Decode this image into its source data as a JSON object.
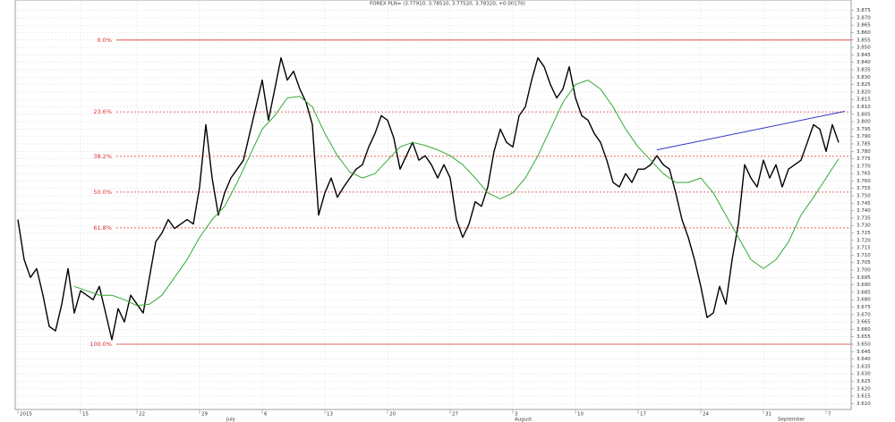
{
  "chart_data": {
    "type": "line",
    "title": "FOREX PLN= (3.77910, 3.78510, 3.77520, 3.78320, +0.00170)",
    "xlim": [
      0,
      133
    ],
    "ylim": [
      3.606,
      3.882
    ],
    "grid": true,
    "xticks": [
      {
        "value": 0,
        "label": "2015"
      },
      {
        "value": 10,
        "label": "15"
      },
      {
        "value": 19,
        "label": "22"
      },
      {
        "value": 29,
        "label": "29"
      },
      {
        "value": 39,
        "label": "6"
      },
      {
        "value": 49,
        "label": "13"
      },
      {
        "value": 59,
        "label": "20"
      },
      {
        "value": 69,
        "label": "27"
      },
      {
        "value": 79,
        "label": "3"
      },
      {
        "value": 89,
        "label": "10"
      },
      {
        "value": 99,
        "label": "17"
      },
      {
        "value": 109,
        "label": "24"
      },
      {
        "value": 119,
        "label": "31"
      },
      {
        "value": 129,
        "label": "7"
      }
    ],
    "month_labels": [
      {
        "value": 33,
        "label": "July"
      },
      {
        "value": 79,
        "label": "August"
      },
      {
        "value": 121,
        "label": "September"
      }
    ],
    "yticks": [
      {
        "value": 3.61,
        "label": "3.610"
      },
      3.615,
      {
        "value": 3.62,
        "label": "3.620"
      },
      3.625,
      {
        "value": 3.63,
        "label": "3.630"
      },
      3.635,
      {
        "value": 3.64,
        "label": "3.640"
      },
      3.645,
      {
        "value": 3.65,
        "label": "3.650"
      },
      3.655,
      {
        "value": 3.66,
        "label": "3.660"
      },
      3.665,
      {
        "value": 3.67,
        "label": "3.670"
      },
      3.675,
      {
        "value": 3.68,
        "label": "3.680"
      },
      3.685,
      {
        "value": 3.69,
        "label": "3.690"
      },
      3.695,
      {
        "value": 3.7,
        "label": "3.700"
      },
      3.705,
      {
        "value": 3.71,
        "label": "3.710"
      },
      3.715,
      {
        "value": 3.72,
        "label": "3.720"
      },
      3.725,
      {
        "value": 3.73,
        "label": "3.730"
      },
      3.735,
      {
        "value": 3.74,
        "label": "3.740"
      },
      3.745,
      {
        "value": 3.75,
        "label": "3.750"
      },
      3.755,
      {
        "value": 3.76,
        "label": "3.760"
      },
      3.765,
      {
        "value": 3.77,
        "label": "3.770"
      },
      3.775,
      {
        "value": 3.78,
        "label": "3.780"
      },
      3.785,
      {
        "value": 3.79,
        "label": "3.790"
      },
      3.795,
      {
        "value": 3.8,
        "label": "3.800"
      },
      3.805,
      {
        "value": 3.81,
        "label": "3.810"
      },
      3.815,
      {
        "value": 3.82,
        "label": "3.820"
      },
      3.825,
      {
        "value": 3.83,
        "label": "3.830"
      },
      3.835,
      {
        "value": 3.84,
        "label": "3.840"
      },
      3.845,
      {
        "value": 3.85,
        "label": "3.850"
      },
      3.855,
      {
        "value": 3.86,
        "label": "3.860"
      },
      3.865,
      {
        "value": 3.87,
        "label": "3.870"
      },
      3.875
    ],
    "series": [
      {
        "color": "#000000",
        "values": [
          3.734,
          3.707,
          3.695,
          3.701,
          3.683,
          3.662,
          3.659,
          3.677,
          3.701,
          3.671,
          3.686,
          3.683,
          3.68,
          3.689,
          3.671,
          3.653,
          3.674,
          3.665,
          3.683,
          3.677,
          3.671,
          3.695,
          3.719,
          3.725,
          3.734,
          3.728,
          3.731,
          3.734,
          3.731,
          3.756,
          3.798,
          3.762,
          3.737,
          3.752,
          3.762,
          3.768,
          3.774,
          3.792,
          3.81,
          3.828,
          3.801,
          3.822,
          3.843,
          3.828,
          3.834,
          3.822,
          3.813,
          3.798,
          3.737,
          3.752,
          3.762,
          3.749,
          3.756,
          3.762,
          3.768,
          3.771,
          3.783,
          3.792,
          3.804,
          3.801,
          3.789,
          3.768,
          3.777,
          3.786,
          3.774,
          3.777,
          3.771,
          3.762,
          3.771,
          3.762,
          3.734,
          3.722,
          3.731,
          3.746,
          3.743,
          3.756,
          3.78,
          3.795,
          3.786,
          3.783,
          3.804,
          3.81,
          3.828,
          3.843,
          3.837,
          3.825,
          3.816,
          3.822,
          3.837,
          3.816,
          3.804,
          3.801,
          3.792,
          3.786,
          3.774,
          3.759,
          3.756,
          3.765,
          3.759,
          3.768,
          3.768,
          3.771,
          3.777,
          3.771,
          3.768,
          3.752,
          3.734,
          3.722,
          3.707,
          3.689,
          3.668,
          3.671,
          3.689,
          3.677,
          3.707,
          3.731,
          3.771,
          3.762,
          3.756,
          3.774,
          3.762,
          3.771,
          3.756,
          3.768,
          3.771,
          3.774,
          3.786,
          3.798,
          3.795,
          3.78,
          3.798,
          3.786
        ]
      },
      {
        "color": "#33aa33",
        "x": [
          9,
          11,
          13,
          15,
          17,
          19,
          21,
          23,
          25,
          27,
          29,
          31,
          33,
          35,
          37,
          39,
          41,
          43,
          45,
          47,
          49,
          51,
          53,
          55,
          57,
          59,
          61,
          63,
          65,
          67,
          69,
          71,
          73,
          75,
          77,
          79,
          81,
          83,
          85,
          87,
          89,
          91,
          93,
          95,
          97,
          99,
          101,
          103,
          105,
          107,
          109,
          111,
          113,
          115,
          117,
          119,
          121,
          123,
          125,
          127,
          129,
          131
        ],
        "values": [
          3.689,
          3.686,
          3.683,
          3.683,
          3.68,
          3.676,
          3.677,
          3.683,
          3.695,
          3.707,
          3.722,
          3.734,
          3.743,
          3.759,
          3.777,
          3.795,
          3.804,
          3.816,
          3.817,
          3.81,
          3.792,
          3.777,
          3.766,
          3.762,
          3.765,
          3.774,
          3.783,
          3.786,
          3.784,
          3.781,
          3.777,
          3.771,
          3.762,
          3.752,
          3.748,
          3.752,
          3.762,
          3.777,
          3.795,
          3.813,
          3.825,
          3.828,
          3.822,
          3.81,
          3.795,
          3.783,
          3.774,
          3.765,
          3.759,
          3.759,
          3.762,
          3.752,
          3.737,
          3.722,
          3.707,
          3.701,
          3.707,
          3.719,
          3.737,
          3.749,
          3.762,
          3.775
        ]
      }
    ],
    "trendline": {
      "color": "#3333cc",
      "x": [
        102,
        132
      ],
      "values": [
        3.781,
        3.807
      ]
    },
    "fib_color": "#e03030",
    "fib_levels": [
      {
        "label": "0.0%",
        "value": 3.855,
        "dashed": false
      },
      {
        "label": "23.6%",
        "value": 3.8066,
        "dashed": true
      },
      {
        "label": "38.2%",
        "value": 3.7766,
        "dashed": true
      },
      {
        "label": "50.0%",
        "value": 3.7525,
        "dashed": true
      },
      {
        "label": "61.8%",
        "value": 3.7284,
        "dashed": true
      },
      {
        "label": "100.0%",
        "value": 3.65,
        "dashed": false
      }
    ]
  }
}
